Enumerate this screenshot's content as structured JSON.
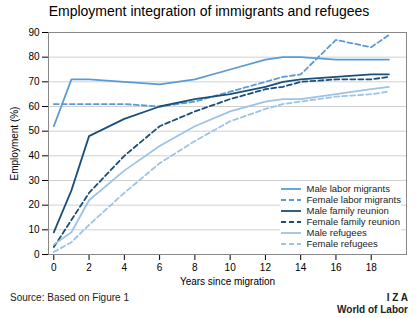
{
  "chart_data": {
    "type": "line",
    "title": "Employment integration of immigrants and refugees",
    "xlabel": "Years since migration",
    "ylabel": "Employment (%)",
    "annotations": [
      "Source: Based on Figure 1",
      "I Z A",
      "World of Labor"
    ],
    "x": [
      0,
      1,
      2,
      4,
      6,
      8,
      10,
      12,
      13,
      14,
      16,
      18,
      19
    ],
    "series": [
      {
        "name": "Male labor migrants",
        "color": "#5b9bd5",
        "line_style": "solid",
        "values": [
          52,
          71,
          71,
          70,
          69,
          71,
          75,
          79,
          80,
          80,
          79,
          79,
          79
        ]
      },
      {
        "name": "Female labor migrants",
        "color": "#5b9bd5",
        "line_style": "dashed",
        "values": [
          61,
          61,
          61,
          61,
          60,
          62,
          66,
          70,
          72,
          73,
          87,
          84,
          89
        ]
      },
      {
        "name": "Male family reunion",
        "color": "#1a4f7a",
        "line_style": "solid",
        "values": [
          9,
          26,
          48,
          55,
          60,
          63,
          65,
          68,
          70,
          71,
          72,
          73,
          73
        ]
      },
      {
        "name": "Female family reunion",
        "color": "#1a4f7a",
        "line_style": "dashed",
        "values": [
          3,
          14,
          25,
          40,
          52,
          58,
          63,
          67,
          68,
          70,
          71,
          71,
          72
        ]
      },
      {
        "name": "Male refugees",
        "color": "#9dc3e6",
        "line_style": "solid",
        "values": [
          4,
          9,
          22,
          34,
          44,
          52,
          58,
          62,
          63,
          63,
          65,
          67,
          68
        ]
      },
      {
        "name": "Female refugees",
        "color": "#9dc3e6",
        "line_style": "dashed",
        "values": [
          1,
          5,
          12,
          25,
          37,
          46,
          54,
          59,
          61,
          62,
          64,
          65,
          66
        ]
      }
    ],
    "xlim": [
      -0.3,
      20
    ],
    "ylim": [
      0,
      90
    ],
    "xticks": [
      0,
      2,
      4,
      6,
      8,
      10,
      12,
      14,
      16,
      18
    ],
    "yticks": [
      0,
      10,
      20,
      30,
      40,
      50,
      60,
      70,
      80,
      90
    ],
    "grid": true,
    "legend": "lower right"
  }
}
